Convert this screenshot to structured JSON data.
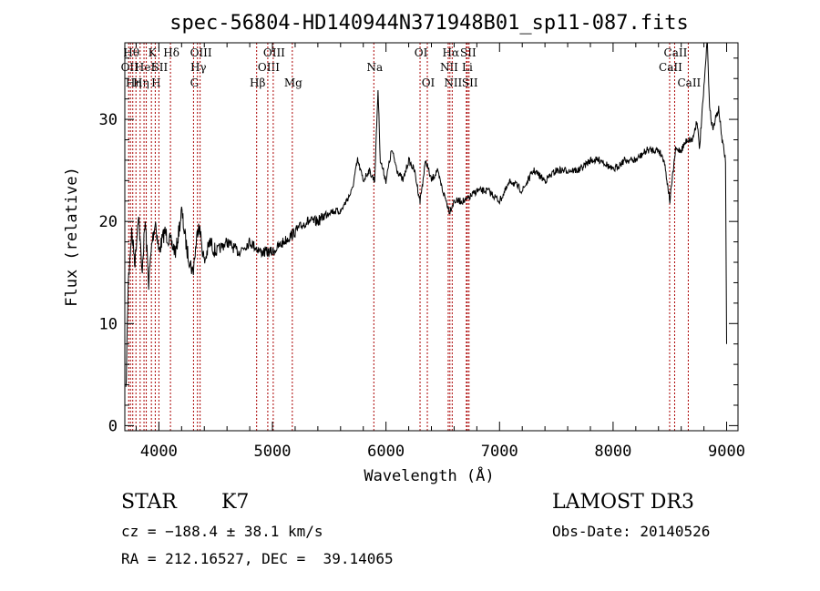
{
  "chart_data": {
    "type": "line",
    "title": "spec-56804-HD140944N371948B01_sp11-087.fits",
    "xlabel": "Wavelength (Å)",
    "ylabel": "Flux (relative)",
    "xlim": [
      3700,
      9100
    ],
    "ylim": [
      -0.5,
      37.5
    ],
    "xticks": [
      4000,
      5000,
      6000,
      7000,
      8000,
      9000
    ],
    "yticks": [
      0,
      10,
      20,
      30
    ],
    "grid": false,
    "line_color": "#000000",
    "marker_color": "#aa0000",
    "series": [
      {
        "name": "flux",
        "x": [
          3710,
          3730,
          3760,
          3790,
          3820,
          3850,
          3880,
          3910,
          3940,
          3970,
          4000,
          4050,
          4100,
          4150,
          4200,
          4250,
          4300,
          4350,
          4400,
          4450,
          4500,
          4600,
          4700,
          4800,
          4900,
          5000,
          5100,
          5200,
          5300,
          5400,
          5500,
          5600,
          5700,
          5750,
          5800,
          5850,
          5900,
          5930,
          5950,
          6000,
          6050,
          6100,
          6150,
          6200,
          6250,
          6300,
          6350,
          6400,
          6450,
          6500,
          6560,
          6600,
          6700,
          6800,
          6900,
          7000,
          7100,
          7200,
          7300,
          7400,
          7500,
          7600,
          7700,
          7800,
          7900,
          8000,
          8100,
          8200,
          8300,
          8400,
          8450,
          8500,
          8550,
          8600,
          8650,
          8700,
          8740,
          8760,
          8800,
          8830,
          8850,
          8880,
          8900,
          8930,
          8960,
          8990,
          9000
        ],
        "y": [
          3,
          14,
          19,
          16,
          21,
          15,
          20,
          14,
          18,
          20,
          17,
          19,
          18,
          17,
          21,
          17,
          15,
          20,
          16,
          18,
          17,
          18,
          17,
          18,
          17,
          17,
          18,
          19,
          20,
          20,
          21,
          21,
          23,
          26,
          24,
          25,
          24,
          33,
          26,
          24,
          27,
          25,
          24,
          26,
          25,
          22,
          26,
          24,
          25,
          23,
          21,
          22,
          22,
          23,
          23,
          22,
          24,
          23,
          25,
          24,
          25,
          25,
          25,
          26,
          26,
          25,
          26,
          26,
          27,
          27,
          26,
          22,
          27,
          27,
          28,
          28,
          30,
          27,
          33,
          38,
          31,
          29,
          30,
          31,
          28,
          26,
          8
        ]
      }
    ],
    "line_markers": [
      {
        "wave": 3734,
        "label": "OII",
        "row": 2
      },
      {
        "wave": 3750,
        "label": "Hθ",
        "row": 1
      },
      {
        "wave": 3770,
        "label": "Hη",
        "row": 3
      },
      {
        "wave": 3798,
        "label": "",
        "row": 0
      },
      {
        "wave": 3835,
        "label": "Hη",
        "row": 3
      },
      {
        "wave": 3869,
        "label": "HeI",
        "row": 2
      },
      {
        "wave": 3889,
        "label": "",
        "row": 0
      },
      {
        "wave": 3934,
        "label": "K",
        "row": 1
      },
      {
        "wave": 3968,
        "label": "H",
        "row": 3
      },
      {
        "wave": 4000,
        "label": "SII",
        "row": 2
      },
      {
        "wave": 4102,
        "label": "Hδ",
        "row": 1
      },
      {
        "wave": 4305,
        "label": "G",
        "row": 3
      },
      {
        "wave": 4340,
        "label": "Hγ",
        "row": 2
      },
      {
        "wave": 4363,
        "label": "OIII",
        "row": 1
      },
      {
        "wave": 4861,
        "label": "Hβ",
        "row": 3
      },
      {
        "wave": 4959,
        "label": "OIII",
        "row": 2
      },
      {
        "wave": 5007,
        "label": "OIII",
        "row": 1
      },
      {
        "wave": 5175,
        "label": "Mg",
        "row": 3
      },
      {
        "wave": 5893,
        "label": "Na",
        "row": 2
      },
      {
        "wave": 6300,
        "label": "OI",
        "row": 1
      },
      {
        "wave": 6364,
        "label": "OI",
        "row": 3
      },
      {
        "wave": 6548,
        "label": "NII",
        "row": 2
      },
      {
        "wave": 6563,
        "label": "Hα",
        "row": 1
      },
      {
        "wave": 6583,
        "label": "NII",
        "row": 3
      },
      {
        "wave": 6708,
        "label": "Li",
        "row": 2
      },
      {
        "wave": 6716,
        "label": "SII",
        "row": 1
      },
      {
        "wave": 6731,
        "label": "SII",
        "row": 3
      },
      {
        "wave": 8498,
        "label": "CaII",
        "row": 2
      },
      {
        "wave": 8542,
        "label": "CaII",
        "row": 1
      },
      {
        "wave": 8662,
        "label": "CaII",
        "row": 3
      }
    ]
  },
  "footer": {
    "class_label": "STAR",
    "subclass": "K7",
    "survey": "LAMOST DR3",
    "cz": "cz = −188.4 ± 38.1 km/s",
    "obs_date": "Obs-Date: 20140526",
    "coords": "RA = 212.16527, DEC =  39.14065"
  }
}
